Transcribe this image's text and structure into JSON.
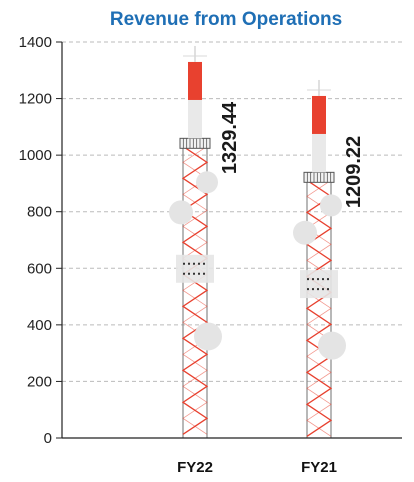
{
  "chart_data": {
    "type": "bar",
    "title": "Revenue from Operations",
    "categories": [
      "FY22",
      "FY21"
    ],
    "values": [
      1329.44,
      1209.22
    ],
    "value_labels": [
      "1329.44",
      "1209.22"
    ],
    "xlabel": "",
    "ylabel": "",
    "ylim": [
      0,
      1400
    ],
    "yticks": [
      "0",
      "200",
      "400",
      "600",
      "800",
      "1000",
      "1200",
      "1400"
    ],
    "grid": true,
    "legend": "none",
    "style": "pictorial telecom tower bars",
    "colors": {
      "title": "#1f6fb5",
      "tower_lattice": "#e8412f",
      "tower_frame": "#888888",
      "antenna_top": "#e8412f",
      "dish": "#e4e4e4",
      "grid": "#bbbbbb"
    }
  }
}
